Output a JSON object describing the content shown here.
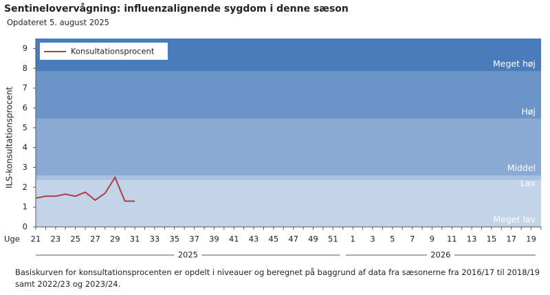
{
  "chart_data": {
    "type": "line",
    "title": "Sentinelovervågning: influenzalignende sygdom i denne sæson",
    "subtitle": "Opdateret 5. august 2025",
    "y_label": "ILS-konsultationsprocent",
    "x_label": "Uge",
    "note": "Basiskurven for konsultationsprocenten er opdelt i niveauer og beregnet på baggrund af data fra sæsonerne fra 2016/17 til 2018/19 samt 2022/23 og 2023/24.",
    "categories": [
      "21",
      null,
      "23",
      null,
      "25",
      null,
      "27",
      null,
      "29",
      null,
      "31",
      null,
      "33",
      null,
      "35",
      null,
      "37",
      null,
      "39",
      null,
      "41",
      null,
      "43",
      null,
      "45",
      null,
      "47",
      null,
      "49",
      null,
      "51",
      null,
      "1",
      null,
      "3",
      null,
      "5",
      null,
      "7",
      null,
      "9",
      null,
      "11",
      null,
      "13",
      null,
      "15",
      null,
      "17",
      null,
      "19",
      null
    ],
    "year_labels": [
      "2025",
      "2026"
    ],
    "series": [
      {
        "name": "Konsultationsprocent",
        "color": "#b03a44",
        "values": [
          1.45,
          1.55,
          1.55,
          1.65,
          1.55,
          1.75,
          1.35,
          1.7,
          2.5,
          1.3,
          1.3,
          null,
          null,
          null,
          null,
          null,
          null,
          null,
          null,
          null,
          null,
          null,
          null,
          null,
          null,
          null,
          null,
          null,
          null,
          null,
          null,
          null,
          null,
          null,
          null,
          null,
          null,
          null,
          null,
          null,
          null,
          null,
          null,
          null,
          null,
          null,
          null,
          null,
          null,
          null,
          null,
          null
        ]
      }
    ],
    "bands": [
      {
        "label": "Meget lav",
        "from": 0,
        "to": 2.35,
        "color": "#c3d3e8"
      },
      {
        "label": "Lav",
        "from": 2.35,
        "to": 2.6,
        "color": "#a8c1e0"
      },
      {
        "label": "Middel",
        "from": 2.6,
        "to": 5.45,
        "color": "#8aaad3"
      },
      {
        "label": "Høj",
        "from": 5.45,
        "to": 7.85,
        "color": "#6b95c9"
      },
      {
        "label": "Meget høj",
        "from": 7.85,
        "to": 9.5,
        "color": "#4a7bbb"
      }
    ],
    "ylim": [
      0,
      9.5
    ],
    "yticks": [
      0,
      1,
      2,
      3,
      4,
      5,
      6,
      7,
      8,
      9
    ],
    "legend": "top-left"
  }
}
